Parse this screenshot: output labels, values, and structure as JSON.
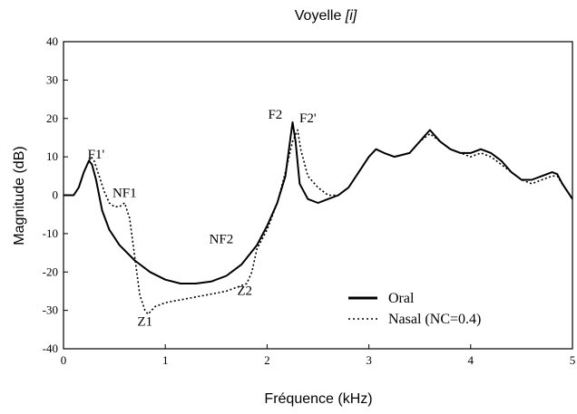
{
  "chart_data": {
    "type": "line",
    "title_prefix": "Voyelle ",
    "title_vowel": "[i]",
    "xlabel": "Fréquence (kHz)",
    "ylabel": "Magnitude (dB)",
    "xlim": [
      0,
      5
    ],
    "ylim": [
      -40,
      40
    ],
    "xticks": [
      0,
      1,
      2,
      3,
      4,
      5
    ],
    "yticks": [
      40,
      30,
      20,
      10,
      0,
      -10,
      -20,
      -30,
      -40
    ],
    "grid": false,
    "legend_position": "bottom-right",
    "series": [
      {
        "name": "Oral",
        "style": "solid",
        "color": "#000000",
        "points": [
          [
            0,
            0
          ],
          [
            0.1,
            0
          ],
          [
            0.15,
            2
          ],
          [
            0.2,
            6
          ],
          [
            0.25,
            9
          ],
          [
            0.28,
            8
          ],
          [
            0.32,
            4
          ],
          [
            0.38,
            -4
          ],
          [
            0.45,
            -9
          ],
          [
            0.55,
            -13
          ],
          [
            0.7,
            -17
          ],
          [
            0.85,
            -20
          ],
          [
            1.0,
            -22
          ],
          [
            1.15,
            -23
          ],
          [
            1.3,
            -23
          ],
          [
            1.45,
            -22.5
          ],
          [
            1.6,
            -21
          ],
          [
            1.75,
            -18
          ],
          [
            1.9,
            -13
          ],
          [
            2.0,
            -8
          ],
          [
            2.1,
            -2
          ],
          [
            2.18,
            5
          ],
          [
            2.23,
            15
          ],
          [
            2.25,
            19
          ],
          [
            2.28,
            14
          ],
          [
            2.32,
            3
          ],
          [
            2.4,
            -1
          ],
          [
            2.5,
            -2
          ],
          [
            2.6,
            -1
          ],
          [
            2.7,
            0
          ],
          [
            2.8,
            2
          ],
          [
            2.9,
            6
          ],
          [
            3.0,
            10
          ],
          [
            3.07,
            12
          ],
          [
            3.15,
            11
          ],
          [
            3.25,
            10
          ],
          [
            3.4,
            11
          ],
          [
            3.5,
            14
          ],
          [
            3.6,
            17
          ],
          [
            3.7,
            14
          ],
          [
            3.8,
            12
          ],
          [
            3.9,
            11
          ],
          [
            4.0,
            11
          ],
          [
            4.1,
            12
          ],
          [
            4.2,
            11
          ],
          [
            4.3,
            9
          ],
          [
            4.4,
            6
          ],
          [
            4.5,
            4
          ],
          [
            4.6,
            4
          ],
          [
            4.7,
            5
          ],
          [
            4.8,
            6
          ],
          [
            4.85,
            5.5
          ],
          [
            4.9,
            3
          ],
          [
            5.0,
            -1
          ]
        ]
      },
      {
        "name": "Nasal (NC=0.4)",
        "style": "dotted",
        "color": "#000000",
        "points": [
          [
            0,
            0
          ],
          [
            0.1,
            0
          ],
          [
            0.15,
            2
          ],
          [
            0.2,
            6
          ],
          [
            0.27,
            10
          ],
          [
            0.3,
            9
          ],
          [
            0.35,
            5
          ],
          [
            0.4,
            1
          ],
          [
            0.45,
            -2
          ],
          [
            0.5,
            -3
          ],
          [
            0.55,
            -3
          ],
          [
            0.6,
            -2
          ],
          [
            0.65,
            -6
          ],
          [
            0.7,
            -16
          ],
          [
            0.75,
            -26
          ],
          [
            0.8,
            -30
          ],
          [
            0.83,
            -31
          ],
          [
            0.9,
            -29
          ],
          [
            1.0,
            -28
          ],
          [
            1.2,
            -27
          ],
          [
            1.4,
            -26
          ],
          [
            1.6,
            -25
          ],
          [
            1.8,
            -23
          ],
          [
            1.85,
            -20
          ],
          [
            1.9,
            -14
          ],
          [
            2.0,
            -9
          ],
          [
            2.1,
            -2
          ],
          [
            2.18,
            6
          ],
          [
            2.25,
            14
          ],
          [
            2.3,
            17
          ],
          [
            2.33,
            12
          ],
          [
            2.4,
            5
          ],
          [
            2.5,
            2
          ],
          [
            2.6,
            0
          ],
          [
            2.7,
            0
          ],
          [
            2.8,
            2
          ],
          [
            2.9,
            6
          ],
          [
            3.0,
            10
          ],
          [
            3.07,
            12
          ],
          [
            3.15,
            11
          ],
          [
            3.25,
            10
          ],
          [
            3.4,
            11
          ],
          [
            3.5,
            14
          ],
          [
            3.6,
            16
          ],
          [
            3.7,
            14
          ],
          [
            3.8,
            12
          ],
          [
            3.9,
            11
          ],
          [
            4.0,
            10
          ],
          [
            4.1,
            11
          ],
          [
            4.2,
            10
          ],
          [
            4.3,
            8
          ],
          [
            4.4,
            6
          ],
          [
            4.5,
            4
          ],
          [
            4.6,
            3
          ],
          [
            4.7,
            4
          ],
          [
            4.8,
            5
          ],
          [
            4.85,
            5
          ],
          [
            4.9,
            3
          ],
          [
            5.0,
            -1
          ]
        ]
      }
    ],
    "annotations": [
      {
        "text": "F1'",
        "x": 0.32,
        "y": 9.5
      },
      {
        "text": "NF1",
        "x": 0.6,
        "y": -0.5
      },
      {
        "text": "Z1",
        "x": 0.8,
        "y": -34
      },
      {
        "text": "NF2",
        "x": 1.55,
        "y": -12.5
      },
      {
        "text": "Z2",
        "x": 1.78,
        "y": -26
      },
      {
        "text": "F2",
        "x": 2.08,
        "y": 20
      },
      {
        "text": "F2'",
        "x": 2.4,
        "y": 19
      }
    ]
  }
}
